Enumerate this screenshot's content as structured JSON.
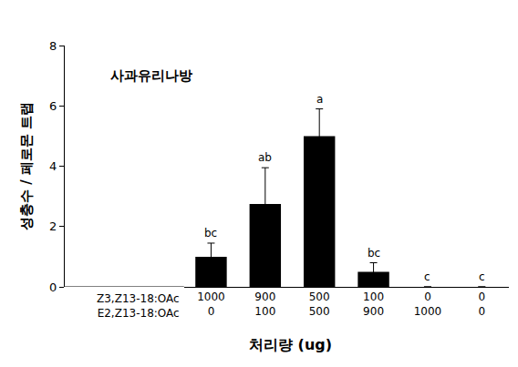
{
  "chart_data": {
    "type": "bar",
    "title": "사과유리나방",
    "y_label": "성충수 / 페로몬 트랩",
    "x_label": "처리량 (ug)",
    "category_rows": [
      "Z3,Z13-18:OAc",
      "E2,Z13-18:OAc"
    ],
    "categories": [
      [
        "1000",
        "0"
      ],
      [
        "900",
        "100"
      ],
      [
        "500",
        "500"
      ],
      [
        "100",
        "900"
      ],
      [
        "0",
        "1000"
      ],
      [
        "0",
        "0"
      ]
    ],
    "values": [
      1.0,
      2.75,
      5.0,
      0.5,
      0,
      0
    ],
    "errors": [
      0.45,
      1.2,
      0.9,
      0.3,
      0,
      0
    ],
    "significance_letters": [
      "bc",
      "ab",
      "a",
      "bc",
      "c",
      "c"
    ],
    "color": "#000000",
    "ylim": [
      0,
      8
    ],
    "yticks": [
      0,
      2,
      4,
      6,
      8
    ],
    "grid": false
  }
}
